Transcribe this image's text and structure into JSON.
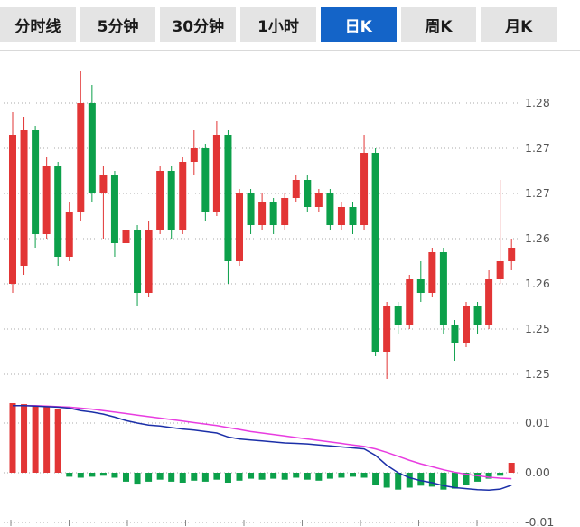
{
  "tabs": [
    {
      "label": "分时线",
      "active": false
    },
    {
      "label": "5分钟",
      "active": false
    },
    {
      "label": "30分钟",
      "active": false
    },
    {
      "label": "1小时",
      "active": false
    },
    {
      "label": "日K",
      "active": true
    },
    {
      "label": "周K",
      "active": false
    },
    {
      "label": "月K",
      "active": false
    }
  ],
  "colors": {
    "up": "#e23535",
    "down": "#0ca04a",
    "dif_line": "#1b2fa8",
    "dea_line": "#e83ce0",
    "grid": "#aaaaaa",
    "axis_text": "#555555",
    "tab_active_bg": "#1464c8",
    "tab_bg": "#e4e4e4"
  },
  "chart_data": {
    "type": "candlestick",
    "title": "Daily K-line with MACD sub-panel",
    "legend_position": "none",
    "grid": "dotted-horizontal",
    "price_axis_ticks": [
      {
        "value": 1.28,
        "label": "1.28"
      },
      {
        "value": 1.275,
        "label": "1.27"
      },
      {
        "value": 1.27,
        "label": "1.27"
      },
      {
        "value": 1.265,
        "label": "1.26"
      },
      {
        "value": 1.26,
        "label": "1.26"
      },
      {
        "value": 1.255,
        "label": "1.25"
      },
      {
        "value": 1.25,
        "label": "1.25"
      }
    ],
    "macd_axis_ticks": [
      {
        "value": 0.01,
        "label": "0.01"
      },
      {
        "value": 0.0,
        "label": "0.00"
      },
      {
        "value": -0.01,
        "label": "-0.01"
      }
    ],
    "price_range": [
      1.2495,
      1.2835
    ],
    "candles_format": "open,high,low,close",
    "candles": [
      [
        1.26,
        1.279,
        1.259,
        1.2765
      ],
      [
        1.262,
        1.2785,
        1.261,
        1.277
      ],
      [
        1.277,
        1.2775,
        1.264,
        1.2655
      ],
      [
        1.2655,
        1.274,
        1.265,
        1.273
      ],
      [
        1.273,
        1.2735,
        1.262,
        1.263
      ],
      [
        1.263,
        1.269,
        1.2625,
        1.268
      ],
      [
        1.268,
        1.2835,
        1.267,
        1.28
      ],
      [
        1.28,
        1.282,
        1.269,
        1.27
      ],
      [
        1.27,
        1.273,
        1.265,
        1.272
      ],
      [
        1.272,
        1.2725,
        1.263,
        1.2645
      ],
      [
        1.2645,
        1.267,
        1.26,
        1.266
      ],
      [
        1.266,
        1.2665,
        1.2575,
        1.259
      ],
      [
        1.259,
        1.267,
        1.2585,
        1.266
      ],
      [
        1.266,
        1.273,
        1.2655,
        1.2725
      ],
      [
        1.2725,
        1.273,
        1.265,
        1.266
      ],
      [
        1.266,
        1.274,
        1.2655,
        1.2735
      ],
      [
        1.2735,
        1.277,
        1.272,
        1.275
      ],
      [
        1.275,
        1.2755,
        1.267,
        1.268
      ],
      [
        1.268,
        1.278,
        1.2675,
        1.2765
      ],
      [
        1.2765,
        1.277,
        1.26,
        1.2625
      ],
      [
        1.2625,
        1.2705,
        1.262,
        1.27
      ],
      [
        1.27,
        1.2705,
        1.2655,
        1.2665
      ],
      [
        1.2665,
        1.27,
        1.266,
        1.269
      ],
      [
        1.269,
        1.2695,
        1.2655,
        1.2665
      ],
      [
        1.2665,
        1.27,
        1.266,
        1.2695
      ],
      [
        1.2695,
        1.272,
        1.269,
        1.2715
      ],
      [
        1.2715,
        1.272,
        1.268,
        1.2685
      ],
      [
        1.2685,
        1.2705,
        1.268,
        1.27
      ],
      [
        1.27,
        1.2705,
        1.266,
        1.2665
      ],
      [
        1.2665,
        1.269,
        1.266,
        1.2685
      ],
      [
        1.2685,
        1.269,
        1.2655,
        1.2665
      ],
      [
        1.2665,
        1.2765,
        1.266,
        1.2745
      ],
      [
        1.2745,
        1.275,
        1.252,
        1.2525
      ],
      [
        1.2525,
        1.258,
        1.2495,
        1.2575
      ],
      [
        1.2575,
        1.258,
        1.2545,
        1.2555
      ],
      [
        1.2555,
        1.261,
        1.255,
        1.2605
      ],
      [
        1.2605,
        1.2625,
        1.258,
        1.259
      ],
      [
        1.259,
        1.264,
        1.2585,
        1.2635
      ],
      [
        1.2635,
        1.264,
        1.2545,
        1.2555
      ],
      [
        1.2555,
        1.256,
        1.2515,
        1.2535
      ],
      [
        1.2535,
        1.258,
        1.253,
        1.2575
      ],
      [
        1.2575,
        1.258,
        1.2545,
        1.2555
      ],
      [
        1.2555,
        1.2615,
        1.255,
        1.2605
      ],
      [
        1.2605,
        1.2715,
        1.26,
        1.2625
      ],
      [
        1.2625,
        1.265,
        1.2615,
        1.264
      ]
    ],
    "macd": {
      "dif": [
        0.0135,
        0.0135,
        0.0134,
        0.0133,
        0.0132,
        0.013,
        0.0125,
        0.0122,
        0.0118,
        0.0112,
        0.0105,
        0.01,
        0.0096,
        0.0094,
        0.0091,
        0.0088,
        0.0086,
        0.0083,
        0.008,
        0.0072,
        0.0068,
        0.0066,
        0.0064,
        0.0062,
        0.006,
        0.0059,
        0.0058,
        0.0056,
        0.0054,
        0.0052,
        0.005,
        0.0048,
        0.0035,
        0.0015,
        0.0,
        -0.001,
        -0.0016,
        -0.002,
        -0.0026,
        -0.003,
        -0.0032,
        -0.0034,
        -0.0035,
        -0.0033,
        -0.0025
      ],
      "dea": [
        0.0135,
        0.0135,
        0.0135,
        0.0134,
        0.0133,
        0.0132,
        0.013,
        0.0128,
        0.0125,
        0.0122,
        0.0119,
        0.0116,
        0.0113,
        0.011,
        0.0107,
        0.0104,
        0.0101,
        0.0098,
        0.0095,
        0.0091,
        0.0087,
        0.0083,
        0.008,
        0.0077,
        0.0074,
        0.0071,
        0.0068,
        0.0065,
        0.0062,
        0.0059,
        0.0056,
        0.0053,
        0.0048,
        0.0041,
        0.0033,
        0.0025,
        0.0018,
        0.0012,
        0.0006,
        0.0001,
        -0.0003,
        -0.0006,
        -0.0009,
        -0.0011,
        -0.0012
      ],
      "hist": [
        0.014,
        0.0138,
        0.0135,
        0.0132,
        0.0128,
        -0.0008,
        -0.001,
        -0.0008,
        -0.0006,
        -0.001,
        -0.0018,
        -0.0022,
        -0.0018,
        -0.0014,
        -0.0018,
        -0.002,
        -0.0016,
        -0.0018,
        -0.0014,
        -0.002,
        -0.0016,
        -0.0012,
        -0.0014,
        -0.0012,
        -0.0014,
        -0.001,
        -0.0014,
        -0.0016,
        -0.0012,
        -0.001,
        -0.0008,
        -0.001,
        -0.0024,
        -0.003,
        -0.0034,
        -0.003,
        -0.0026,
        -0.0028,
        -0.0034,
        -0.0032,
        -0.0024,
        -0.0018,
        -0.0012,
        -0.0006,
        0.002
      ]
    }
  }
}
